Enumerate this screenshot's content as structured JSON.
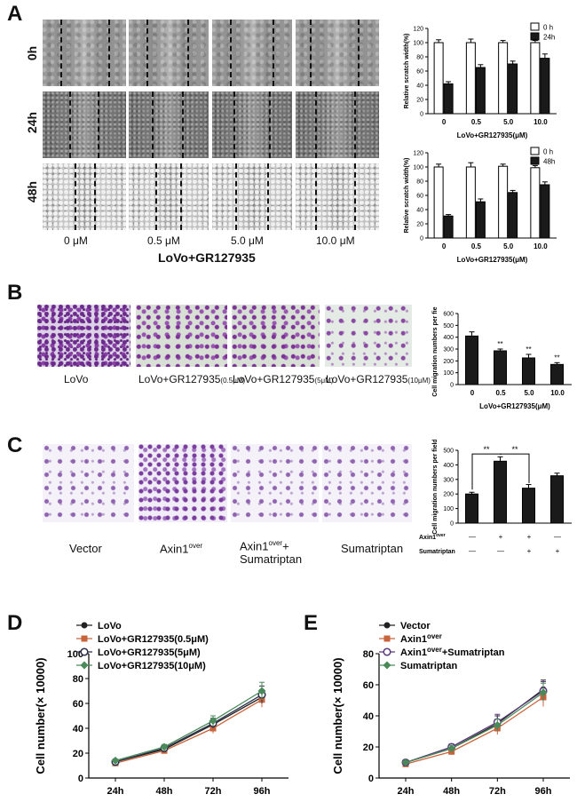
{
  "panels": {
    "A": "A",
    "B": "B",
    "C": "C",
    "D": "D",
    "E": "E"
  },
  "panelA": {
    "rows": [
      "0h",
      "24h",
      "48h"
    ],
    "columns": [
      "0 μM",
      "0.5 μM",
      "5.0 μM",
      "10.0 μM"
    ],
    "treatment": "LoVo+GR127935"
  },
  "panelB": {
    "images": [
      "LoVo",
      "LoVo+GR127935",
      "LoVo+GR127935",
      "LoVo+GR127935"
    ],
    "subscripts": [
      "",
      "(0.5μM)",
      "(5μM)",
      "(10μM)"
    ]
  },
  "panelC": {
    "images": [
      "Vector",
      "Axin1",
      "Axin1",
      "Sumatriptan"
    ],
    "superscripts": [
      "",
      "over",
      "over",
      ""
    ],
    "third_line2": "Sumatriptan",
    "third_plus": "+"
  },
  "colors": {
    "bar_dark": "#1a1a1a",
    "bar_white": "#ffffff",
    "loVo": "#222222",
    "orange": "#c8643c",
    "navy": "#2a2f4a",
    "green": "#4a8a5a",
    "purple": "#5a3a7a"
  },
  "chart_data": [
    {
      "id": "A-24h",
      "type": "bar",
      "categories": [
        "0",
        "0.5",
        "5.0",
        "10.0"
      ],
      "series": [
        {
          "name": "0 h",
          "values": [
            100,
            100,
            100,
            100
          ],
          "errors": [
            4,
            5,
            3,
            3
          ]
        },
        {
          "name": "24h",
          "values": [
            42,
            65,
            70,
            78
          ],
          "errors": [
            3,
            4,
            4,
            6
          ]
        }
      ],
      "ylabel": "Relative scratch width(%)",
      "xlabel": "LoVo+GR127935(μM)",
      "yticks": [
        "0",
        "20",
        "40",
        "60",
        "80",
        "100",
        "120"
      ],
      "ylim": [
        0,
        120
      ]
    },
    {
      "id": "A-48h",
      "type": "bar",
      "categories": [
        "0",
        "0.5",
        "5.0",
        "10.0"
      ],
      "series": [
        {
          "name": "0 h",
          "values": [
            100,
            100,
            101,
            99
          ],
          "errors": [
            4,
            6,
            3,
            3
          ]
        },
        {
          "name": "48h",
          "values": [
            31,
            51,
            64,
            75
          ],
          "errors": [
            2,
            4,
            3,
            4
          ]
        }
      ],
      "ylabel": "Relative scratch width(%)",
      "xlabel": "LoVo+GR127935(μM)",
      "yticks": [
        "0",
        "20",
        "40",
        "60",
        "80",
        "100",
        "120"
      ],
      "ylim": [
        0,
        120
      ]
    },
    {
      "id": "B",
      "type": "bar",
      "categories": [
        "0",
        "0.5",
        "5.0",
        "10.0"
      ],
      "series": [
        {
          "name": "Cell migration",
          "values": [
            410,
            285,
            225,
            170
          ],
          "errors": [
            35,
            15,
            30,
            15
          ],
          "sig": [
            "",
            "**",
            "**",
            "**"
          ]
        }
      ],
      "ylabel": "Cell migration numbers per field",
      "xlabel": "LoVo+GR127935(μM)",
      "yticks": [
        "0",
        "100",
        "200",
        "300",
        "400",
        "500",
        "600"
      ],
      "ylim": [
        0,
        600
      ]
    },
    {
      "id": "C",
      "type": "bar",
      "categories": [
        "Vector",
        "Axin1over",
        "Axin1over+Sumatriptan",
        "Sumatriptan"
      ],
      "series": [
        {
          "name": "Cell migration",
          "values": [
            200,
            425,
            240,
            325
          ],
          "errors": [
            12,
            30,
            25,
            18
          ]
        }
      ],
      "ylabel": "Cell migration numbers per field",
      "yticks": [
        "0",
        "100",
        "200",
        "300",
        "400",
        "500"
      ],
      "ylim": [
        0,
        500
      ],
      "sig_brackets": [
        "**",
        "**"
      ],
      "row_labels": [
        "Axin1",
        "Sumatriptan"
      ],
      "row_label_sup": "over",
      "axin_row": [
        "—",
        "+",
        "+",
        "—"
      ],
      "suma_row": [
        "—",
        "—",
        "+",
        "+"
      ]
    },
    {
      "id": "D",
      "type": "line",
      "categories": [
        "24h",
        "48h",
        "72h",
        "96h"
      ],
      "series": [
        {
          "name": "LoVo",
          "values": [
            13,
            23,
            43,
            65
          ],
          "errors": [
            1,
            2,
            4,
            6
          ]
        },
        {
          "name": "LoVo+GR127935(0.5μM)",
          "values": [
            12,
            22,
            40,
            63
          ],
          "errors": [
            1,
            2,
            4,
            6
          ]
        },
        {
          "name": "LoVo+GR127935(5μM)",
          "values": [
            13,
            24,
            44,
            67
          ],
          "errors": [
            1,
            2,
            4,
            7
          ]
        },
        {
          "name": "LoVo+GR127935(10μM)",
          "values": [
            14,
            25,
            46,
            70
          ],
          "errors": [
            1,
            2,
            4,
            7
          ]
        }
      ],
      "ylabel": "Cell number(× 10000)",
      "yticks": [
        "0",
        "20",
        "40",
        "60",
        "80",
        "100"
      ],
      "ylim": [
        0,
        100
      ]
    },
    {
      "id": "E",
      "type": "line",
      "categories": [
        "24h",
        "48h",
        "72h",
        "96h"
      ],
      "series": [
        {
          "name": "Vector",
          "values": [
            10,
            19,
            35,
            57
          ],
          "errors": [
            1,
            2,
            5,
            6
          ]
        },
        {
          "name": "Axin1",
          "sup": "over",
          "values": [
            9,
            17,
            32,
            52
          ],
          "errors": [
            1,
            2,
            4,
            6
          ]
        },
        {
          "name": "Axin1",
          "sup": "over",
          "suffix": "+Sumatriptan",
          "values": [
            10,
            20,
            36,
            56
          ],
          "errors": [
            1,
            2,
            5,
            6
          ]
        },
        {
          "name": "Sumatriptan",
          "values": [
            10,
            19,
            34,
            55
          ],
          "errors": [
            1,
            2,
            4,
            6
          ]
        }
      ],
      "ylabel": "Cell number(× 10000)",
      "yticks": [
        "0",
        "20",
        "40",
        "60",
        "80"
      ],
      "ylim": [
        0,
        80
      ]
    }
  ]
}
